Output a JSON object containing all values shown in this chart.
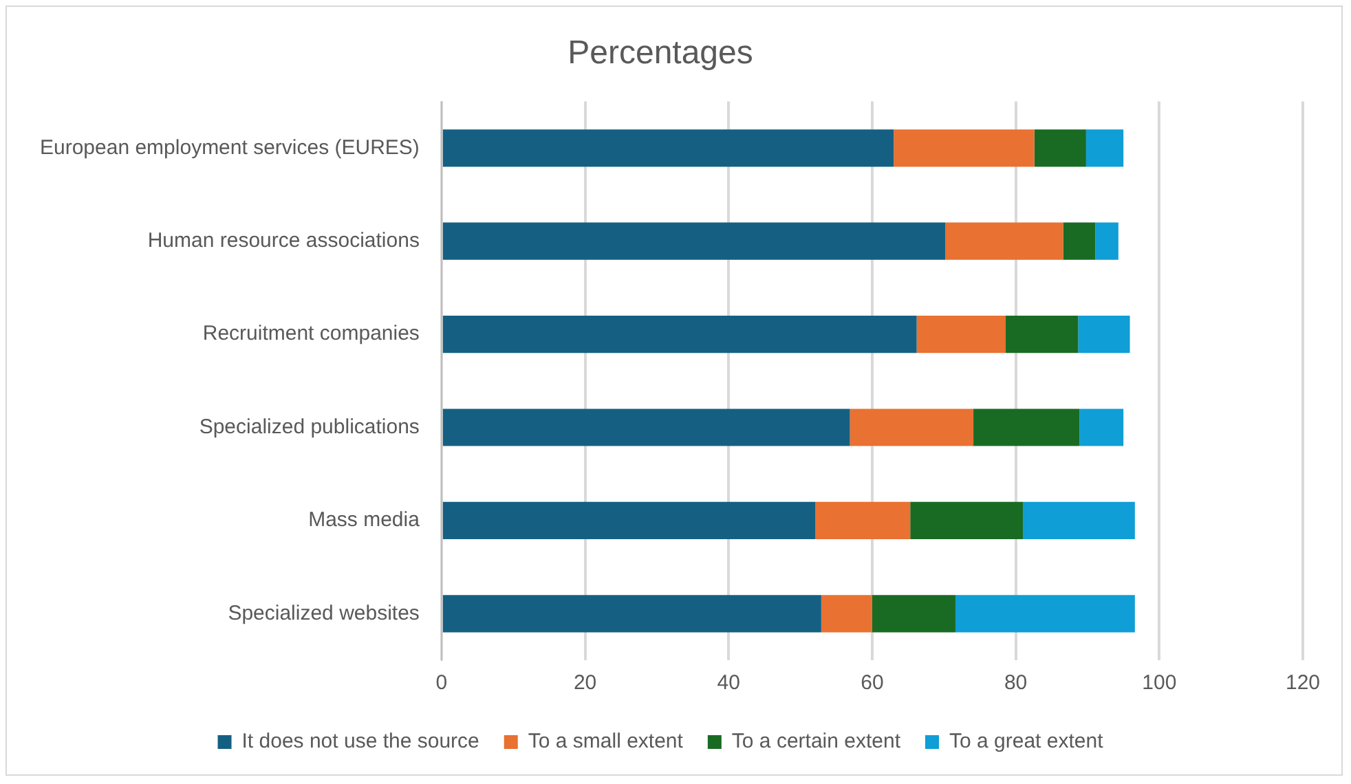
{
  "chart_data": {
    "type": "bar",
    "orientation": "horizontal",
    "stacked": true,
    "title": "Percentages",
    "categories": [
      "European employment services (EURES)",
      "Human resource associations",
      "Recruitment companies",
      "Specialized publications",
      "Mass media",
      "Specialized websites"
    ],
    "series": [
      {
        "name": "It does not use the source",
        "color": "#156082",
        "values": [
          63.0,
          70.2,
          66.2,
          56.9,
          52.1,
          52.9
        ]
      },
      {
        "name": "To a small extent",
        "color": "#e97132",
        "values": [
          19.6,
          16.4,
          12.4,
          17.2,
          13.2,
          7.1
        ]
      },
      {
        "name": "To a certain extent",
        "color": "#196b24",
        "values": [
          7.2,
          4.5,
          10.1,
          14.8,
          15.7,
          11.6
        ]
      },
      {
        "name": "To a great extent",
        "color": "#0f9ed5",
        "values": [
          5.2,
          3.2,
          7.2,
          6.1,
          15.6,
          25.0
        ]
      }
    ],
    "xlim": [
      0,
      120
    ],
    "xticks": [
      0,
      20,
      40,
      60,
      80,
      100,
      120
    ],
    "grid": "x",
    "legend": "bottom"
  }
}
